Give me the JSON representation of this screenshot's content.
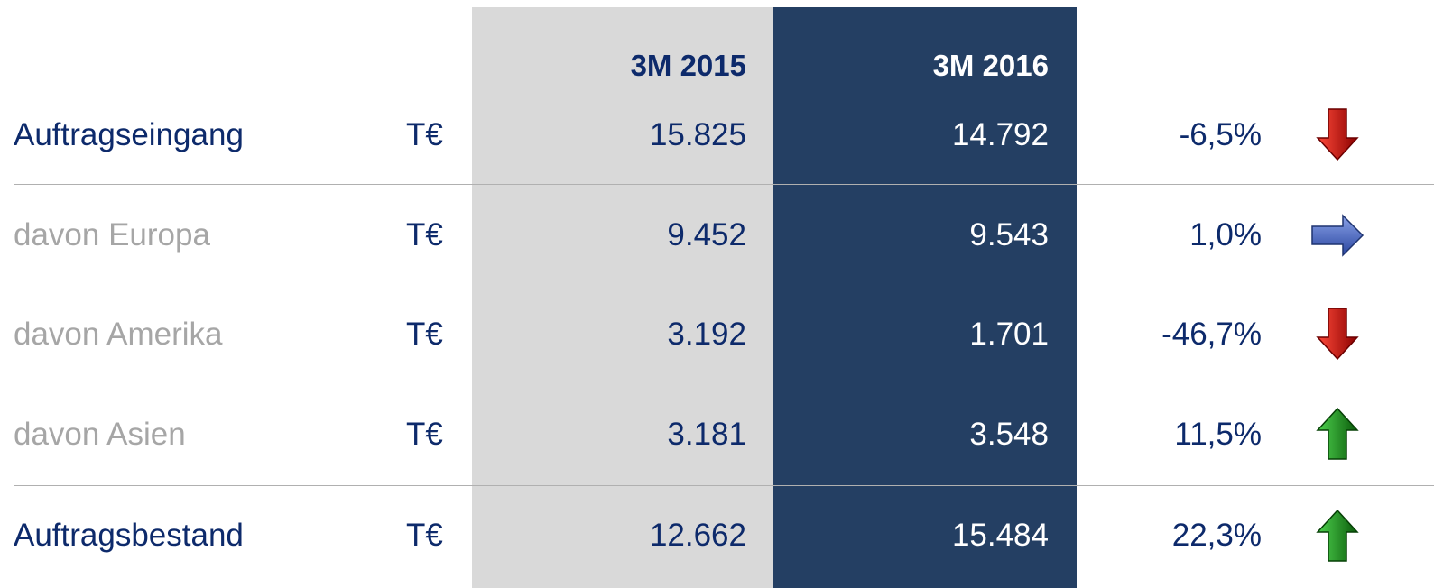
{
  "table": {
    "header": [
      "3M 2015",
      "3M 2016"
    ],
    "rows": [
      [
        "Auftragseingang",
        "T€",
        "15.825",
        "14.792",
        "-6,5%"
      ],
      [
        "davon Europa",
        "T€",
        "9.452",
        "9.543",
        "1,0%"
      ],
      [
        "davon Amerika",
        "T€",
        "3.192",
        "1.701",
        "-46,7%"
      ],
      [
        "davon Asien",
        "T€",
        "3.181",
        "3.548",
        "11,5%"
      ],
      [
        "Auftragsbestand",
        "T€",
        "12.662",
        "15.484",
        "22,3%"
      ]
    ]
  }
}
